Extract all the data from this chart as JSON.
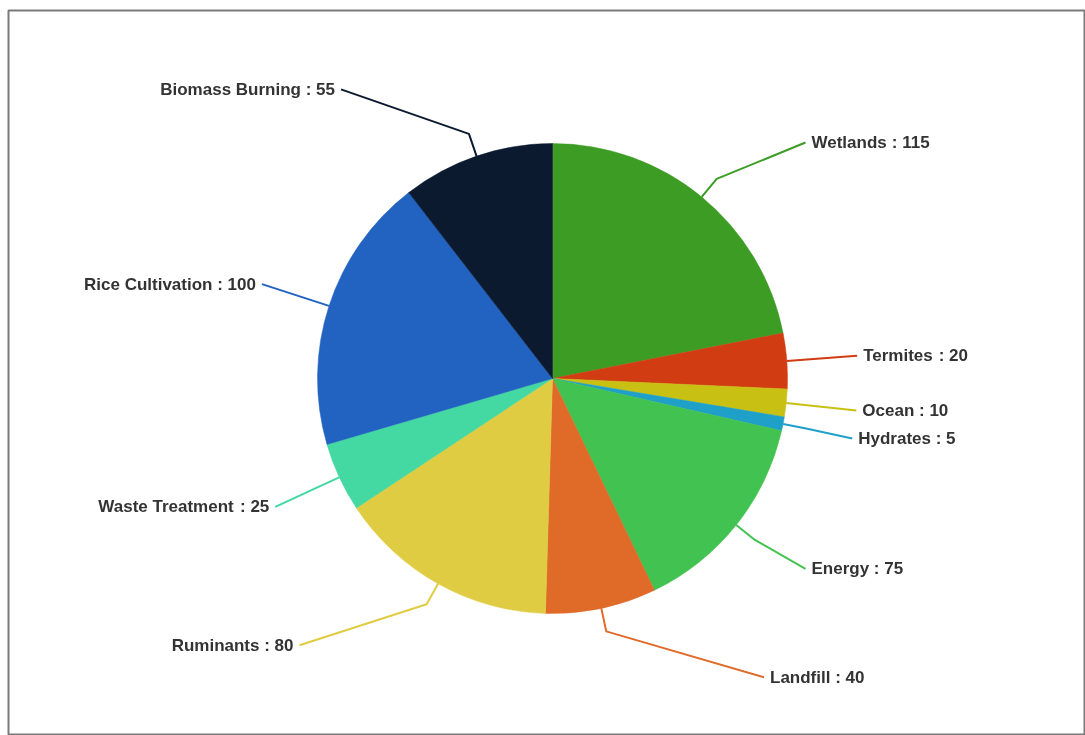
{
  "chart_data": {
    "type": "pie",
    "categories": [
      "Wetlands",
      "Termites",
      "Ocean",
      "Hydrates",
      "Energy",
      "Landfill",
      "Ruminants",
      "Waste Treatment",
      "Rice Cultivation",
      "Biomass Burning"
    ],
    "values": [
      115,
      20,
      10,
      5,
      75,
      40,
      80,
      25,
      100,
      55
    ],
    "value_labels": [
      ": 115",
      ": 20",
      ": 10",
      ": 5",
      ": 75",
      ": 40",
      ": 80",
      ": 25",
      ": 100",
      ": 55"
    ],
    "colors": [
      "#3c9c24",
      "#d23c12",
      "#c8c012",
      "#1ea0c8",
      "#42c250",
      "#e06a28",
      "#e0cc42",
      "#44d8a2",
      "#2262c0",
      "#0c1a30"
    ]
  }
}
